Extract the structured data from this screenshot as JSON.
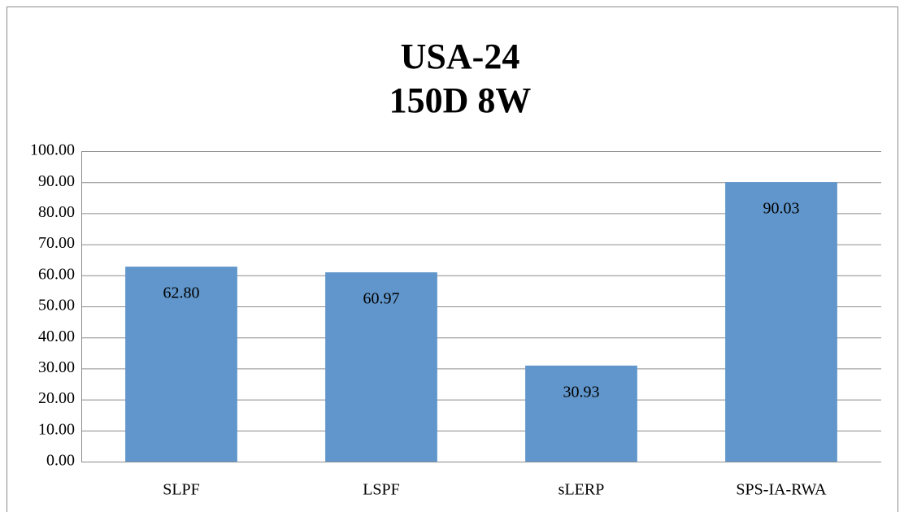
{
  "chart_data": {
    "type": "bar",
    "title": [
      "USA-24",
      "150D 8W"
    ],
    "categories": [
      "SLPF",
      "LSPF",
      "sLERP",
      "SPS-IA-RWA"
    ],
    "values": [
      62.8,
      60.97,
      30.93,
      90.03
    ],
    "value_labels": [
      "62.80",
      "60.97",
      "30.93",
      "90.03"
    ],
    "color": "#6096cb",
    "ylim": [
      0,
      100
    ],
    "yticks": [
      {
        "value": 0,
        "label": "0.00"
      },
      {
        "value": 10,
        "label": "10.00"
      },
      {
        "value": 20,
        "label": "20.00"
      },
      {
        "value": 30,
        "label": "30.00"
      },
      {
        "value": 40,
        "label": "40.00"
      },
      {
        "value": 50,
        "label": "50.00"
      },
      {
        "value": 60,
        "label": "60.00"
      },
      {
        "value": 70,
        "label": "70.00"
      },
      {
        "value": 80,
        "label": "80.00"
      },
      {
        "value": 90,
        "label": "90.00"
      },
      {
        "value": 100,
        "label": "100.00"
      }
    ],
    "grid": true
  }
}
